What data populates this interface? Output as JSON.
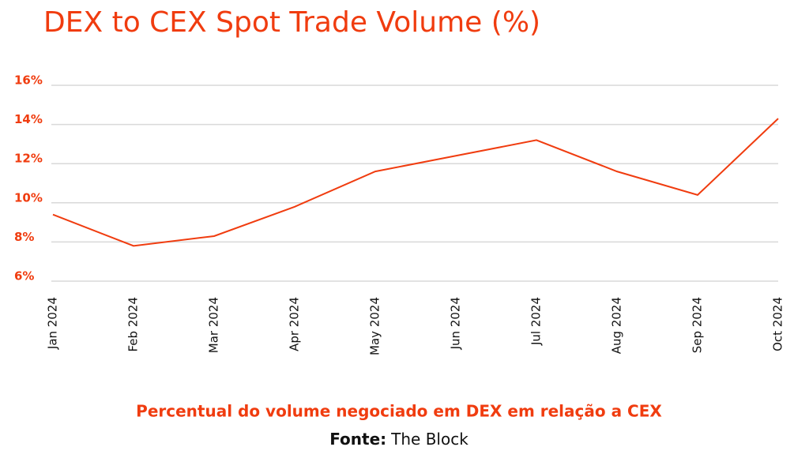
{
  "chart_data": {
    "type": "line",
    "title": "DEX to CEX Spot Trade Volume (%)",
    "subtitle": "Percentual do volume negociado em DEX em relação a CEX",
    "source_label": "Fonte:",
    "source": "The Block",
    "categories": [
      "Jan 2024",
      "Feb 2024",
      "Mar 2024",
      "Apr 2024",
      "May 2024",
      "Jun 2024",
      "Jul 2024",
      "Aug 2024",
      "Sep 2024",
      "Oct 2024"
    ],
    "values": [
      9.4,
      7.8,
      8.3,
      9.8,
      11.6,
      12.4,
      13.2,
      11.6,
      10.4,
      14.3
    ],
    "color": "#f03c0f",
    "ylim": [
      6,
      16
    ],
    "yticks": [
      {
        "value": 6,
        "label": "6%"
      },
      {
        "value": 8,
        "label": "8%"
      },
      {
        "value": 10,
        "label": "10%"
      },
      {
        "value": 12,
        "label": "12%"
      },
      {
        "value": 14,
        "label": "14%"
      },
      {
        "value": 16,
        "label": "16%"
      }
    ],
    "grid": true
  }
}
